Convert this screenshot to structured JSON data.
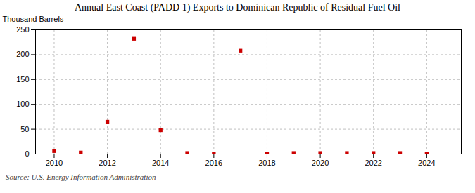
{
  "chart_data": {
    "type": "scatter",
    "title": "Annual East Coast (PADD 1) Exports to Dominican Republic of Residual Fuel Oil",
    "ylabel": "Thousand Barrels",
    "caption": "Source: U.S. Energy Information Administration",
    "x": [
      2010,
      2011,
      2012,
      2013,
      2014,
      2015,
      2016,
      2017,
      2018,
      2019,
      2020,
      2021,
      2022,
      2023,
      2024
    ],
    "values": [
      6,
      3,
      65,
      232,
      48,
      2,
      1,
      208,
      1,
      2,
      2,
      2,
      2,
      2,
      1
    ],
    "color": "#cc0000",
    "marker": "square",
    "xlim": [
      2009.3,
      2025.3
    ],
    "ylim": [
      0,
      250
    ],
    "xticks": [
      2010,
      2012,
      2014,
      2016,
      2018,
      2020,
      2022,
      2024
    ],
    "yticks": [
      0,
      50,
      100,
      150,
      200,
      250
    ],
    "grid": true
  }
}
